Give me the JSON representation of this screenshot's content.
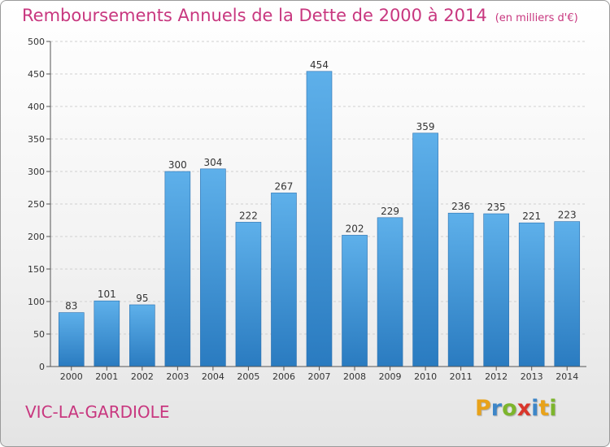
{
  "title": "Remboursements Annuels de la Dette de 2000 à 2014",
  "unit_note": "(en milliers d'€)",
  "commune": "VIC-LA-GARDIOLE",
  "logo": {
    "letters": [
      {
        "char": "P",
        "color": "#e8a21a"
      },
      {
        "char": "r",
        "color": "#3d86c8"
      },
      {
        "char": "o",
        "color": "#7db52c"
      },
      {
        "char": "x",
        "color": "#d9362b"
      },
      {
        "char": "i",
        "color": "#3d86c8"
      },
      {
        "char": "t",
        "color": "#e8a21a"
      },
      {
        "char": "i",
        "color": "#7db52c"
      }
    ]
  },
  "colors": {
    "accent": "#c8377f",
    "bar_top": "#5eb0ea",
    "bar_bottom": "#2a7bc0",
    "grid": "#d0d0d0",
    "axis_text": "#333333"
  },
  "chart_data": {
    "type": "bar",
    "categories": [
      "2000",
      "2001",
      "2002",
      "2003",
      "2004",
      "2005",
      "2006",
      "2007",
      "2008",
      "2009",
      "2010",
      "2011",
      "2012",
      "2013",
      "2014"
    ],
    "values": [
      83,
      101,
      95,
      300,
      304,
      222,
      267,
      454,
      202,
      229,
      359,
      236,
      235,
      221,
      223
    ],
    "ylim": [
      0,
      500
    ],
    "yticks": [
      0,
      50,
      100,
      150,
      200,
      250,
      300,
      350,
      400,
      450,
      500
    ],
    "grid": true,
    "data_labels": true
  }
}
